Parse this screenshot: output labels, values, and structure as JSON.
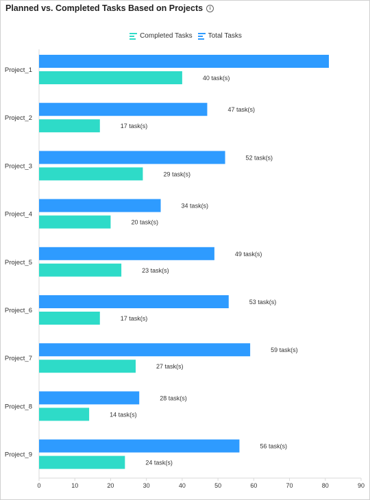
{
  "header": {
    "title": "Planned vs. Completed Tasks Based on Projects",
    "info_icon": "info-icon"
  },
  "colors": {
    "total": "#2e9bff",
    "completed": "#2edbc8",
    "axis": "#d9d9d9"
  },
  "chart_data": {
    "type": "bar",
    "orientation": "horizontal",
    "title": "Planned vs. Completed Tasks Based on Projects",
    "categories": [
      "Project_1",
      "Project_2",
      "Project_3",
      "Project_4",
      "Project_5",
      "Project_6",
      "Project_7",
      "Project_8",
      "Project_9"
    ],
    "series": [
      {
        "name": "Total Tasks",
        "values": [
          81,
          47,
          52,
          34,
          49,
          53,
          59,
          28,
          56
        ]
      },
      {
        "name": "Completed Tasks",
        "values": [
          40,
          17,
          29,
          20,
          23,
          17,
          27,
          14,
          24
        ]
      }
    ],
    "value_labels": {
      "Total Tasks": [
        "",
        "47 task(s)",
        "52 task(s)",
        "34 task(s)",
        "49 task(s)",
        "53 task(s)",
        "59 task(s)",
        "28 task(s)",
        "56 task(s)"
      ],
      "Completed Tasks": [
        "40 task(s)",
        "17 task(s)",
        "29 task(s)",
        "20 task(s)",
        "23 task(s)",
        "17 task(s)",
        "27 task(s)",
        "14 task(s)",
        "24 task(s)"
      ]
    },
    "xlim": [
      0,
      90
    ],
    "xticks": [
      0,
      10,
      20,
      30,
      40,
      50,
      60,
      70,
      80,
      90
    ],
    "legend": [
      "Completed Tasks",
      "Total Tasks"
    ],
    "legend_position": "top-center",
    "grid": false
  }
}
